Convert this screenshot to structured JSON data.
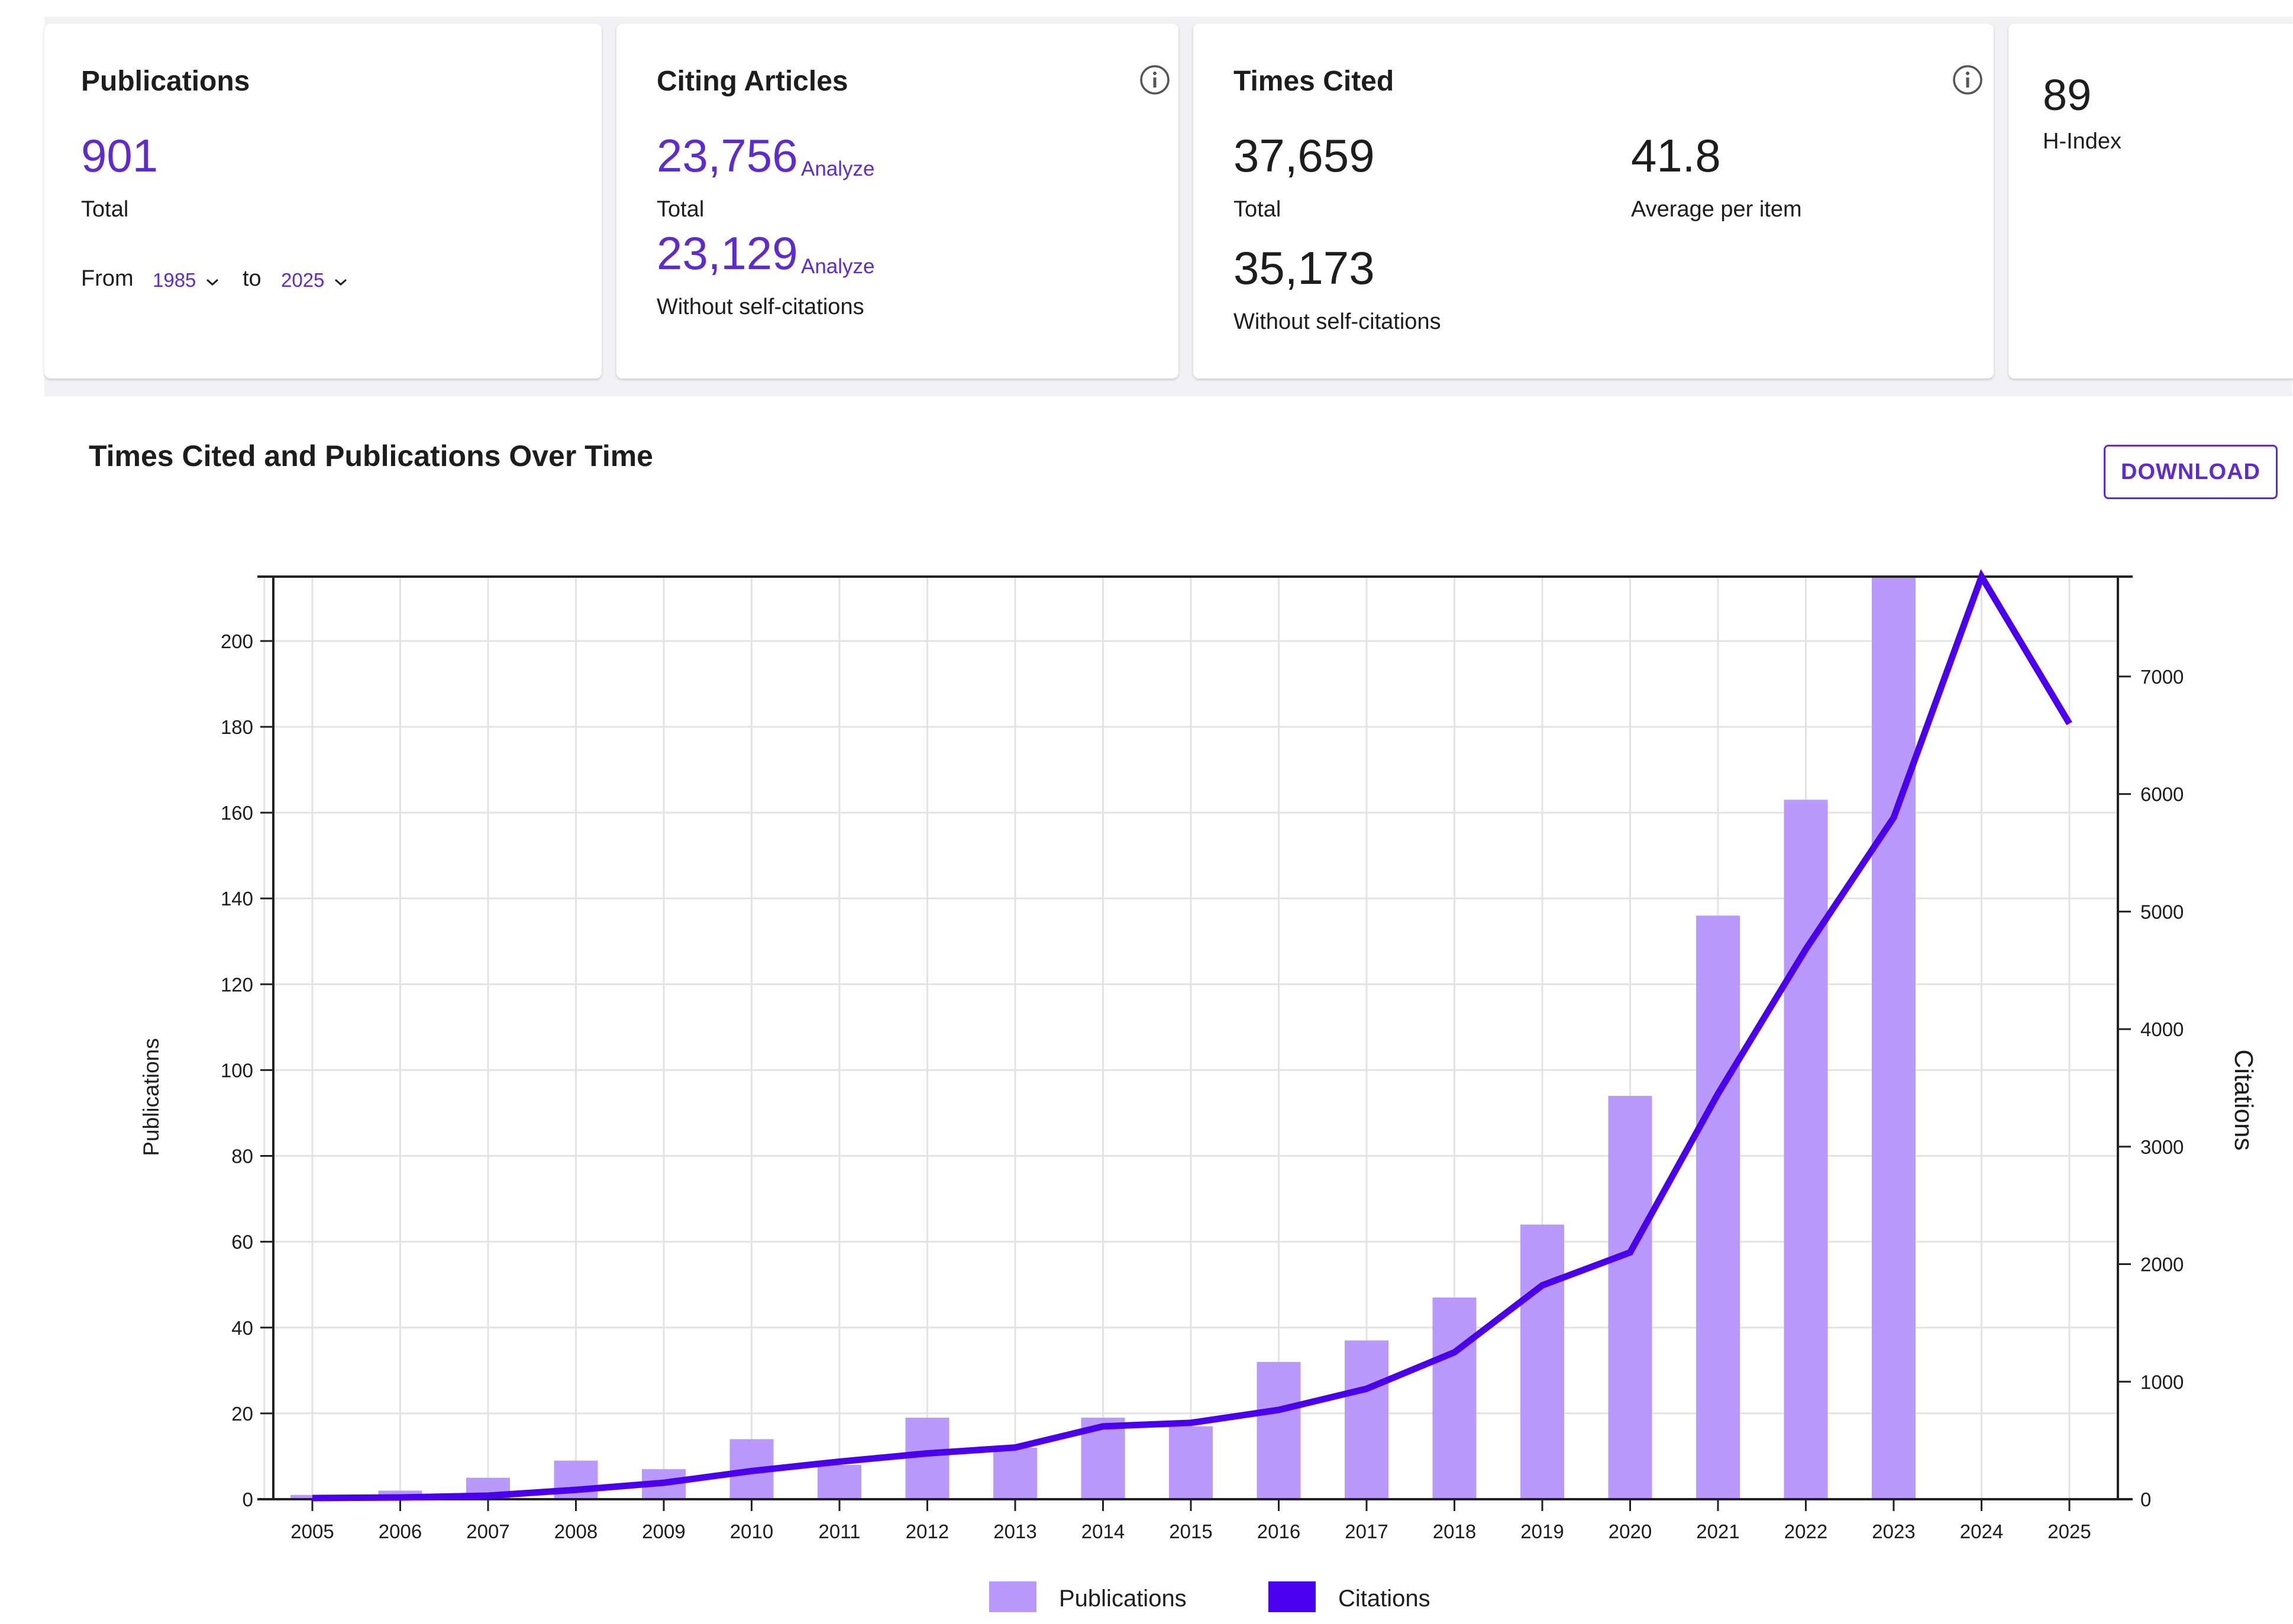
{
  "metrics": {
    "publications": {
      "title": "Publications",
      "total": "901",
      "total_label": "Total",
      "from_label": "From",
      "from_year": "1985",
      "to_label": "to",
      "to_year": "2025"
    },
    "citing_articles": {
      "title": "Citing Articles",
      "total": "23,756",
      "analyze_label": "Analyze",
      "total_label": "Total",
      "without_self": "23,129",
      "without_self_label": "Without self-citations"
    },
    "times_cited": {
      "title": "Times Cited",
      "total": "37,659",
      "total_label": "Total",
      "average": "41.8",
      "average_label": "Average per item",
      "without_self": "35,173",
      "without_self_label": "Without self-citations"
    },
    "h_index": {
      "value": "89",
      "label": "H-Index"
    }
  },
  "chart_section": {
    "title": "Times Cited and Publications Over Time",
    "download_label": "DOWNLOAD"
  },
  "colors": {
    "accent": "#5e2bd0",
    "publications_bar": "#b99afc",
    "citations_line": "#4a00ee"
  },
  "chart_data": {
    "type": "bar",
    "categories": [
      "2005",
      "2006",
      "2007",
      "2008",
      "2009",
      "2010",
      "2011",
      "2012",
      "2013",
      "2014",
      "2015",
      "2016",
      "2017",
      "2018",
      "2019",
      "2020",
      "2021",
      "2022",
      "2023",
      "2024",
      "2025"
    ],
    "series": [
      {
        "name": "Publications",
        "type": "bar",
        "axis": "left",
        "values": [
          1,
          2,
          5,
          9,
          7,
          14,
          8,
          19,
          12,
          19,
          17,
          32,
          37,
          47,
          64,
          94,
          136,
          163,
          216,
          0,
          0
        ]
      },
      {
        "name": "Citations",
        "type": "line",
        "axis": "right",
        "values": [
          10,
          15,
          30,
          80,
          140,
          240,
          320,
          390,
          440,
          620,
          650,
          760,
          940,
          1250,
          1820,
          2100,
          3450,
          4680,
          5800,
          7850,
          6600
        ]
      }
    ],
    "ylabel": "Publications",
    "y2label": "Citations",
    "ylim": [
      0,
      215
    ],
    "y2lim": [
      0,
      7850
    ],
    "yticks": [
      0,
      20,
      40,
      60,
      80,
      100,
      120,
      140,
      160,
      180,
      200
    ],
    "y2ticks": [
      0,
      1000,
      2000,
      3000,
      4000,
      5000,
      6000,
      7000
    ],
    "grid": true,
    "legend": "bottom-center"
  }
}
